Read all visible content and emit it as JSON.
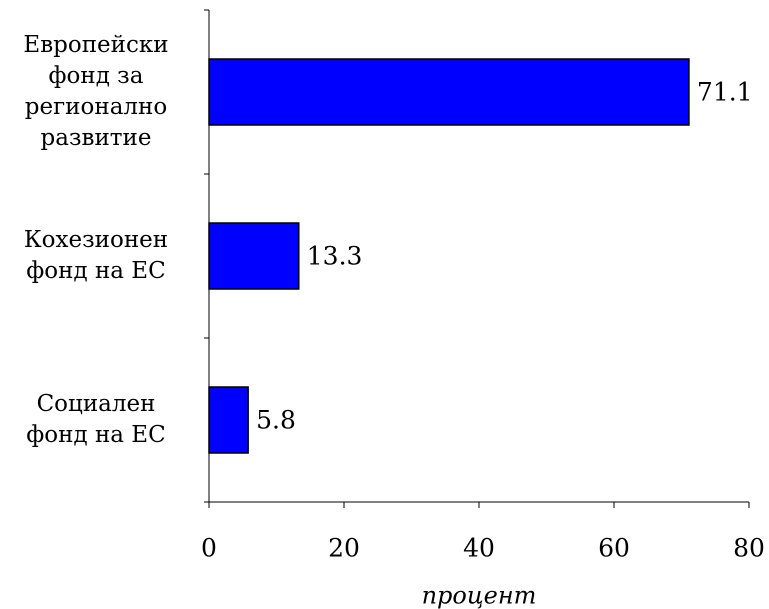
{
  "chart_data": {
    "type": "barh",
    "categories": [
      "Европейски фонд за регионално развитие",
      "Кохезионен фонд на ЕС",
      "Социален фонд на ЕС"
    ],
    "values": [
      71.1,
      13.3,
      5.8
    ],
    "color": "#0000ff",
    "xlabel": "процент",
    "xlim": [
      0,
      80
    ],
    "xticks": [
      0,
      20,
      40,
      60,
      80
    ]
  }
}
